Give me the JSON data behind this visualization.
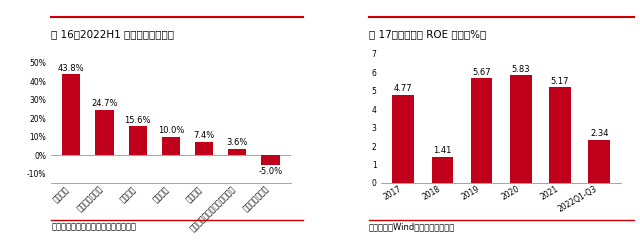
{
  "chart1": {
    "title": "图 16：2022H1 第一创业收入结构",
    "categories": [
      "资产管理",
      "证券经纪及信用",
      "固定收益",
      "其他业务",
      "投资银行",
      "私募股权基金管理与另类投资",
      "自营投资及交易"
    ],
    "values": [
      43.8,
      24.7,
      15.6,
      10.0,
      7.4,
      3.6,
      -5.0
    ],
    "bar_color": "#C0001A",
    "ylim": [
      -15,
      55
    ],
    "yticks": [
      -10,
      0,
      10,
      20,
      30,
      40,
      50
    ],
    "ytick_labels": [
      "-10%",
      "0%",
      "10%",
      "20%",
      "30%",
      "40%",
      "50%"
    ],
    "source": "资料来源：公司财报，中信证券研究部"
  },
  "chart2": {
    "title": "图 17：第一创业 ROE 情况（%）",
    "categories": [
      "2017",
      "2018",
      "2019",
      "2020",
      "2021",
      "2022Q1-Q3"
    ],
    "values": [
      4.77,
      1.41,
      5.67,
      5.83,
      5.17,
      2.34
    ],
    "bar_color": "#C0001A",
    "ylim": [
      0,
      7
    ],
    "yticks": [
      0,
      1,
      2,
      3,
      4,
      5,
      6,
      7
    ],
    "source": "资料来源：Wind，中信证券研究部"
  },
  "bg_color": "#FFFFFF",
  "title_fontsize": 7.5,
  "label_fontsize": 6,
  "tick_fontsize": 5.5,
  "source_fontsize": 6,
  "bar_width": 0.55,
  "separator_color": "#CC0000",
  "top_line_color": "#CC0000"
}
